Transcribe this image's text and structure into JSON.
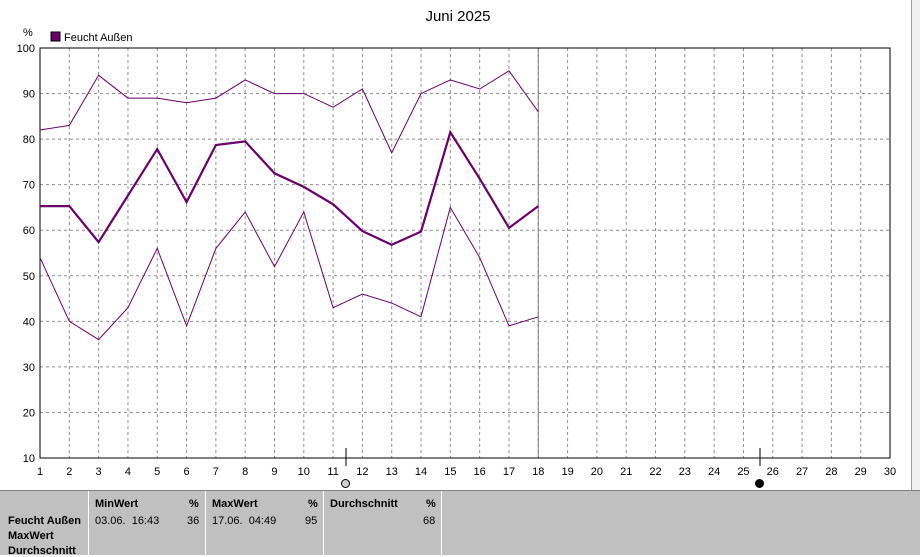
{
  "chart_data": {
    "type": "line",
    "title": "Juni 2025",
    "ylabel": "%",
    "xlabel": "",
    "ylim": [
      10,
      100
    ],
    "xlim": [
      1,
      30
    ],
    "y_ticks": [
      "10",
      "20",
      "30",
      "40",
      "50",
      "60",
      "70",
      "80",
      "90",
      "100"
    ],
    "x_ticks": [
      "1",
      "2",
      "3",
      "4",
      "5",
      "6",
      "7",
      "8",
      "9",
      "10",
      "11",
      "12",
      "13",
      "14",
      "15",
      "16",
      "17",
      "18",
      "19",
      "20",
      "21",
      "22",
      "23",
      "24",
      "25",
      "26",
      "27",
      "28",
      "29",
      "30"
    ],
    "grid": true,
    "legend": {
      "placement": "top-left",
      "entries": [
        "Feucht Außen"
      ]
    },
    "series": [
      {
        "name": "Feucht Außen",
        "role": "max",
        "x": [
          1,
          2,
          3,
          4,
          5,
          6,
          7,
          8,
          9,
          10,
          11,
          12,
          13,
          14,
          15,
          16,
          17,
          18
        ],
        "values": [
          82,
          83,
          94,
          89,
          89,
          88,
          89,
          93,
          90,
          90,
          87,
          91,
          77,
          90,
          93,
          91,
          95,
          86
        ]
      },
      {
        "name": "Feucht Außen",
        "role": "avg",
        "x": [
          1,
          2,
          3,
          4,
          5,
          6,
          7,
          8,
          9,
          10,
          11,
          12,
          13,
          14,
          15,
          16,
          17,
          18
        ],
        "values": [
          65.3,
          65.3,
          57.4,
          67.6,
          77.8,
          66.2,
          78.7,
          79.5,
          72.5,
          69.5,
          65.7,
          59.8,
          56.8,
          59.7,
          81.5,
          71.3,
          60.5,
          65.3
        ]
      },
      {
        "name": "Feucht Außen",
        "role": "min",
        "x": [
          1,
          2,
          3,
          4,
          5,
          6,
          7,
          8,
          9,
          10,
          11,
          12,
          13,
          14,
          15,
          16,
          17,
          18
        ],
        "values": [
          54,
          40,
          36,
          43,
          56,
          39,
          56,
          64,
          52,
          64,
          43,
          46,
          44,
          41,
          65,
          54,
          39,
          41
        ]
      }
    ],
    "colors": {
      "series": "#6a006a",
      "grid": "#909090",
      "current_day_line": "#808080"
    },
    "current_day": 18
  },
  "stats": {
    "columns": [
      {
        "header": "MinWert",
        "unit": "%"
      },
      {
        "header": "MaxWert",
        "unit": "%"
      },
      {
        "header": "Durchschnitt",
        "unit": "%"
      }
    ],
    "row_labels": [
      "Feucht Außen",
      "MaxWert",
      "Durchschnitt"
    ],
    "min": {
      "time": "03.06.  16:43",
      "value": "36"
    },
    "max": {
      "time": "17.06.  04:49",
      "value": "95"
    },
    "avg": {
      "value": "68"
    }
  }
}
